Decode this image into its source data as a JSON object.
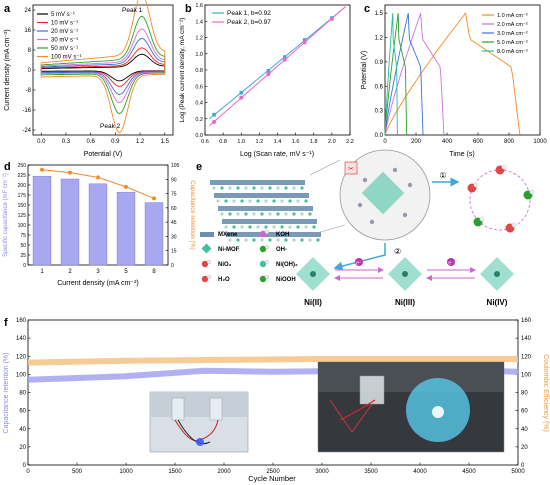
{
  "panel_letters": {
    "a": "a",
    "b": "b",
    "c": "c",
    "d": "d",
    "e": "e",
    "f": "f"
  },
  "colors": {
    "black": "#000000",
    "red": "#ff2020",
    "blue": "#3b6fd8",
    "green": "#2ca02c",
    "violet": "#d070e0",
    "teal": "#1fbf9f",
    "orange": "#f28c28",
    "lavender": "#a8a8f0",
    "lightorange": "#f5c58a",
    "cyan": "#3fa9d9",
    "pink": "#ee66cc",
    "magenta": "#cc44cc"
  },
  "chart_data": [
    {
      "id": "a",
      "type": "line",
      "xlabel": "Potential (V)",
      "ylabel": "Current density (mA cm⁻²)",
      "xlim": [
        -0.1,
        1.6
      ],
      "ylim": [
        -26,
        26
      ],
      "xticks": [
        "0.0",
        "0.3",
        "0.6",
        "0.9",
        "1.2",
        "1.5"
      ],
      "yticks": [
        "-24",
        "-16",
        "-8",
        "0",
        "8",
        "16",
        "24"
      ],
      "annotations": [
        "Peak 1",
        "Peak 2"
      ],
      "legend_placement": "top-left",
      "series": [
        {
          "name": "5   mV s⁻¹",
          "color": "#000000",
          "peak_anodic": 5,
          "peak_cathodic": -4
        },
        {
          "name": "10  mV s⁻¹",
          "color": "#ff2020",
          "peak_anodic": 7,
          "peak_cathodic": -6
        },
        {
          "name": "20  mV s⁻¹",
          "color": "#3b6fd8",
          "peak_anodic": 10,
          "peak_cathodic": -9
        },
        {
          "name": "30  mV s⁻¹",
          "color": "#d070e0",
          "peak_anodic": 13,
          "peak_cathodic": -12
        },
        {
          "name": "50  mV s⁻¹",
          "color": "#2ca02c",
          "peak_anodic": 17,
          "peak_cathodic": -16
        },
        {
          "name": "100 mV s⁻¹",
          "color": "#f28c28",
          "peak_anodic": 24,
          "peak_cathodic": -23
        }
      ]
    },
    {
      "id": "b",
      "type": "scatter",
      "xlabel": "Log (Scan rate, mV s⁻¹)",
      "ylabel": "Log (Peak current density, mA cm⁻²)",
      "xlim": [
        0.6,
        2.2
      ],
      "ylim": [
        0.0,
        1.6
      ],
      "xticks": [
        "0.6",
        "0.8",
        "1.0",
        "1.2",
        "1.4",
        "1.6",
        "1.8",
        "2.0",
        "2.2"
      ],
      "yticks": [
        "0.0",
        "0.2",
        "0.4",
        "0.6",
        "0.8",
        "1.0",
        "1.2",
        "1.4",
        "1.6"
      ],
      "x": [
        0.7,
        1.0,
        1.3,
        1.48,
        1.7,
        2.0
      ],
      "legend_placement": "top-left",
      "series": [
        {
          "name": "Peak 1, b=0.92",
          "color": "#3fa9d9",
          "values": [
            0.25,
            0.52,
            0.79,
            0.96,
            1.17,
            1.44
          ]
        },
        {
          "name": "Peak 2, b=0.97",
          "color": "#ee66cc",
          "values": [
            0.16,
            0.46,
            0.75,
            0.93,
            1.14,
            1.43
          ]
        }
      ]
    },
    {
      "id": "c",
      "type": "line",
      "xlabel": "Time (s)",
      "ylabel": "Potential (V)",
      "xlim": [
        0,
        1000
      ],
      "ylim": [
        0,
        1.6
      ],
      "xticks": [
        "0",
        "200",
        "400",
        "600",
        "800",
        "1000"
      ],
      "yticks": [
        "0.0",
        "0.3",
        "0.6",
        "0.9",
        "1.2",
        "1.5"
      ],
      "legend_placement": "top-right",
      "series": [
        {
          "name": "1.0 mA cm⁻²",
          "color": "#f28c28",
          "charge_end": 520,
          "discharge_end": 870
        },
        {
          "name": "2.0 mA cm⁻²",
          "color": "#d070e0",
          "charge_end": 230,
          "discharge_end": 380
        },
        {
          "name": "3.0 mA cm⁻²",
          "color": "#3b6fd8",
          "charge_end": 150,
          "discharge_end": 245
        },
        {
          "name": "5.0 mA cm⁻²",
          "color": "#2ca02c",
          "charge_end": 85,
          "discharge_end": 140
        },
        {
          "name": "8.0 mA cm⁻²",
          "color": "#1fbf9f",
          "charge_end": 50,
          "discharge_end": 80
        }
      ]
    },
    {
      "id": "d",
      "type": "bar",
      "xlabel": "Current density (mA cm⁻²)",
      "ylabel": "Specific capacitance (mF cm⁻²)",
      "y2label": "Capacitance retention (%)",
      "categories": [
        "1",
        "2",
        "3",
        "5",
        "8"
      ],
      "values": [
        222,
        215,
        203,
        182,
        156
      ],
      "retention": [
        100,
        97,
        92,
        82,
        70
      ],
      "ylim": [
        0,
        250
      ],
      "y2lim": [
        0,
        105
      ],
      "yticks": [
        "0",
        "25",
        "50",
        "75",
        "100",
        "125",
        "150",
        "175",
        "200",
        "225",
        "250"
      ],
      "y2ticks": [
        "0",
        "15",
        "30",
        "45",
        "60",
        "75",
        "90",
        "105"
      ]
    },
    {
      "id": "f",
      "type": "line",
      "xlabel": "Cycle Number",
      "ylabel": "Capacitance retention (%)",
      "y2label": "Coulombic Efficiency (%)",
      "xlim": [
        0,
        5000
      ],
      "ylim": [
        0,
        160
      ],
      "y2lim": [
        0,
        160
      ],
      "xticks": [
        "0",
        "500",
        "1000",
        "1500",
        "2000",
        "2500",
        "3000",
        "3500",
        "4000",
        "4500",
        "5000"
      ],
      "yticks": [
        "0",
        "20",
        "40",
        "60",
        "80",
        "100",
        "120",
        "140",
        "160"
      ],
      "y2ticks": [
        "0",
        "20",
        "40",
        "60",
        "80",
        "100",
        "120",
        "140",
        "160"
      ],
      "series": [
        {
          "name": "Capacitance retention",
          "color": "#a8a8f0",
          "x": [
            0,
            1000,
            1800,
            2500,
            3500,
            4500,
            5000
          ],
          "values": [
            94,
            98,
            104,
            103,
            104,
            104,
            103
          ]
        },
        {
          "name": "Coulombic Efficiency",
          "color": "#f5c58a",
          "x": [
            0,
            1000,
            2000,
            3000,
            4000,
            5000
          ],
          "values": [
            113,
            115,
            116,
            117,
            117,
            117
          ]
        }
      ]
    }
  ],
  "schematic": {
    "legend": [
      "MXene",
      "KOH",
      "Ni-MOF",
      "OH-",
      "NiO₂",
      "Ni(OH)₂",
      "H₂O",
      "NiOOH"
    ],
    "states": [
      "Ni(II)",
      "Ni(III)",
      "Ni(IV)"
    ],
    "steps": [
      "①",
      "②"
    ],
    "electron_label": "e⁻"
  }
}
